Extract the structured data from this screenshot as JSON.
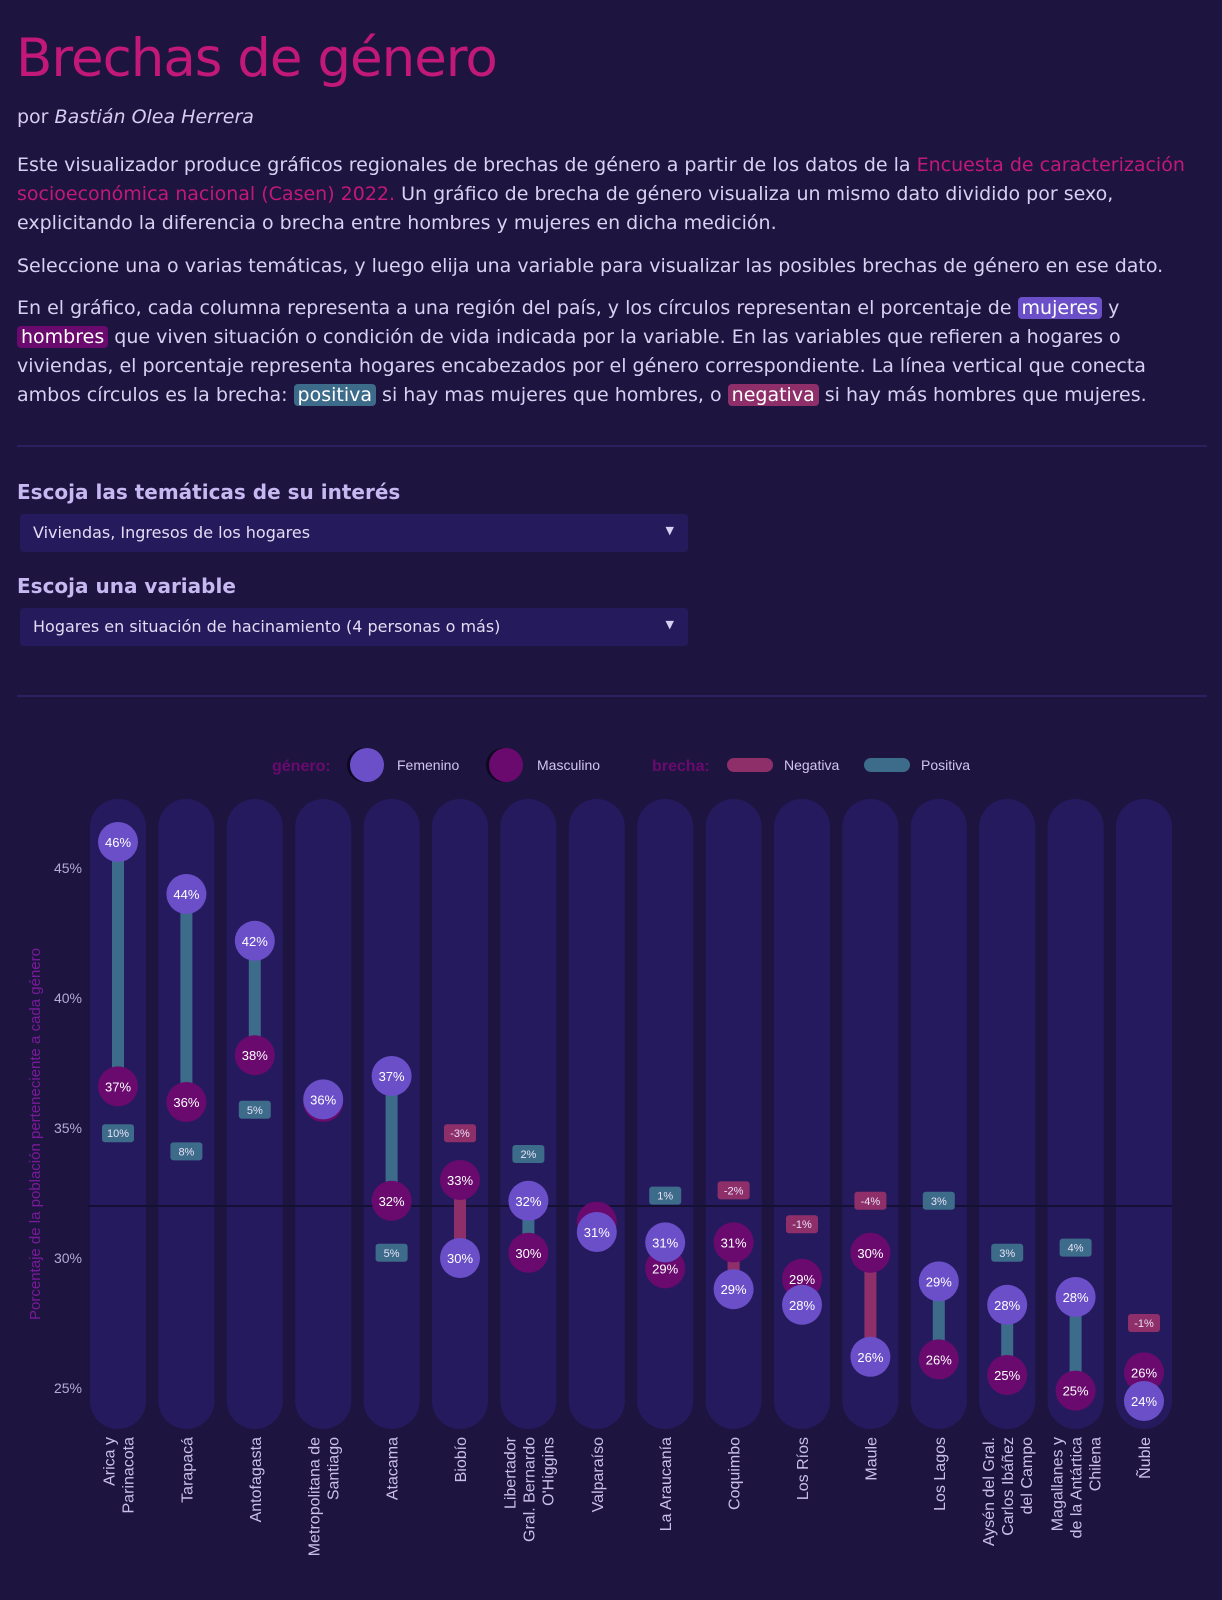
{
  "header": {
    "title": "Brechas de género",
    "byline_prefix": "por",
    "author": "Bastián Olea Herrera"
  },
  "intro": {
    "p1_before": "Este visualizador produce gráficos regionales de brechas de género a partir de los datos de la ",
    "p1_link": "Encuesta de caracterización socioeconómica nacional (Casen) 2022.",
    "p1_after": " Un gráfico de brecha de género visualiza un mismo dato dividido por sexo, explicitando la diferencia o brecha entre hombres y mujeres en dicha medición.",
    "p2": "Seleccione una o varias temáticas, y luego elija una variable para visualizar las posibles brechas de género en ese dato.",
    "p3_a": "En el gráfico, cada columna representa a una región del país, y los círculos representan el porcentaje de ",
    "chip_mujeres": "mujeres",
    "p3_y": " y ",
    "chip_hombres": "hombres",
    "p3_b": " que viven situación o condición de vida indicada por la variable. En las variables que refieren a hogares o viviendas, el porcentaje representa hogares encabezados por el género correspondiente. La línea vertical que conecta ambos círculos es la brecha: ",
    "chip_positiva": "positiva",
    "p3_c": " si hay mas mujeres que hombres, o ",
    "chip_negativa": "negativa",
    "p3_d": " si hay más hombres que mujeres."
  },
  "controls": {
    "topics_label": "Escoja las temáticas de su interés",
    "topics_value": "Viviendas, Ingresos de los hogares",
    "variable_label": "Escoja una variable",
    "variable_value": "Hogares en situación de hacinamiento (4 personas o más)"
  },
  "colors": {
    "female": "#6b4fc8",
    "male": "#6a0a6e",
    "positive": "#3d6b8a",
    "negative": "#8e2f6a",
    "column": "#261a5e",
    "accent": "#c2187a"
  },
  "chart_data": {
    "type": "dumbbell",
    "ylabel": "Porcentaje de la población perteneciente a cada género",
    "ylim": [
      23.5,
      47.5
    ],
    "yticks": [
      25,
      30,
      35,
      40,
      45
    ],
    "ytick_labels": [
      "25%",
      "30%",
      "35%",
      "40%",
      "45%"
    ],
    "reference_line": 32,
    "legend": {
      "genero_title": "género:",
      "femenino": "Femenino",
      "masculino": "Masculino",
      "brecha_title": "brecha:",
      "negativa": "Negativa",
      "positiva": "Positiva"
    },
    "regions": [
      {
        "name": [
          "Arica y",
          "Parinacota"
        ],
        "female": 46,
        "male": 37,
        "gap": "10%"
      },
      {
        "name": [
          "Tarapacá"
        ],
        "female": 44,
        "male": 36,
        "gap": "8%"
      },
      {
        "name": [
          "Antofagasta"
        ],
        "female": 42,
        "male": 38,
        "gap": "5%"
      },
      {
        "name": [
          "Metropolitana de",
          "Santiago"
        ],
        "female": 36,
        "male": 36,
        "gap": ""
      },
      {
        "name": [
          "Atacama"
        ],
        "female": 37,
        "male": 32,
        "gap": "5%"
      },
      {
        "name": [
          "Biobío"
        ],
        "female": 30,
        "male": 33,
        "gap": "-3%"
      },
      {
        "name": [
          "Libertador",
          "Gral. Bernardo",
          "O'Higgins"
        ],
        "female": 32,
        "male": 30,
        "gap": "2%"
      },
      {
        "name": [
          "Valparaíso"
        ],
        "female": 31,
        "male": 31,
        "gap": ""
      },
      {
        "name": [
          "La Araucanía"
        ],
        "female": 31,
        "male": 29,
        "gap": "1%"
      },
      {
        "name": [
          "Coquimbo"
        ],
        "female": 29,
        "male": 31,
        "gap": "-2%"
      },
      {
        "name": [
          "Los Ríos"
        ],
        "female": 28,
        "male": 29,
        "gap": "-1%"
      },
      {
        "name": [
          "Maule"
        ],
        "female": 26,
        "male": 30,
        "gap": "-4%"
      },
      {
        "name": [
          "Los Lagos"
        ],
        "female": 29,
        "male": 26,
        "gap": "3%"
      },
      {
        "name": [
          "Aysén del Gral.",
          "Carlos Ibáñez",
          "del Campo"
        ],
        "female": 28,
        "male": 25,
        "gap": "3%"
      },
      {
        "name": [
          "Magallanes y",
          "de la Antártica",
          "Chilena"
        ],
        "female": 28,
        "male": 25,
        "gap": "4%"
      },
      {
        "name": [
          "Ñuble"
        ],
        "female": 24,
        "male": 26,
        "gap": "-1%"
      }
    ],
    "detailed_positions": {
      "female": [
        46.0,
        44.0,
        42.2,
        36.1,
        37.0,
        30.0,
        32.2,
        31.0,
        30.6,
        28.8,
        28.2,
        26.2,
        29.1,
        28.2,
        28.5,
        24.5
      ],
      "male": [
        36.6,
        36.0,
        37.8,
        36.0,
        32.2,
        33.0,
        30.2,
        31.4,
        29.6,
        30.6,
        29.2,
        30.2,
        26.1,
        25.5,
        24.9,
        25.6
      ],
      "gap_label_y": [
        34.8,
        34.1,
        35.7,
        0,
        30.2,
        34.8,
        34.0,
        0,
        32.4,
        32.6,
        31.3,
        32.2,
        32.2,
        30.2,
        30.4,
        27.5
      ]
    }
  }
}
